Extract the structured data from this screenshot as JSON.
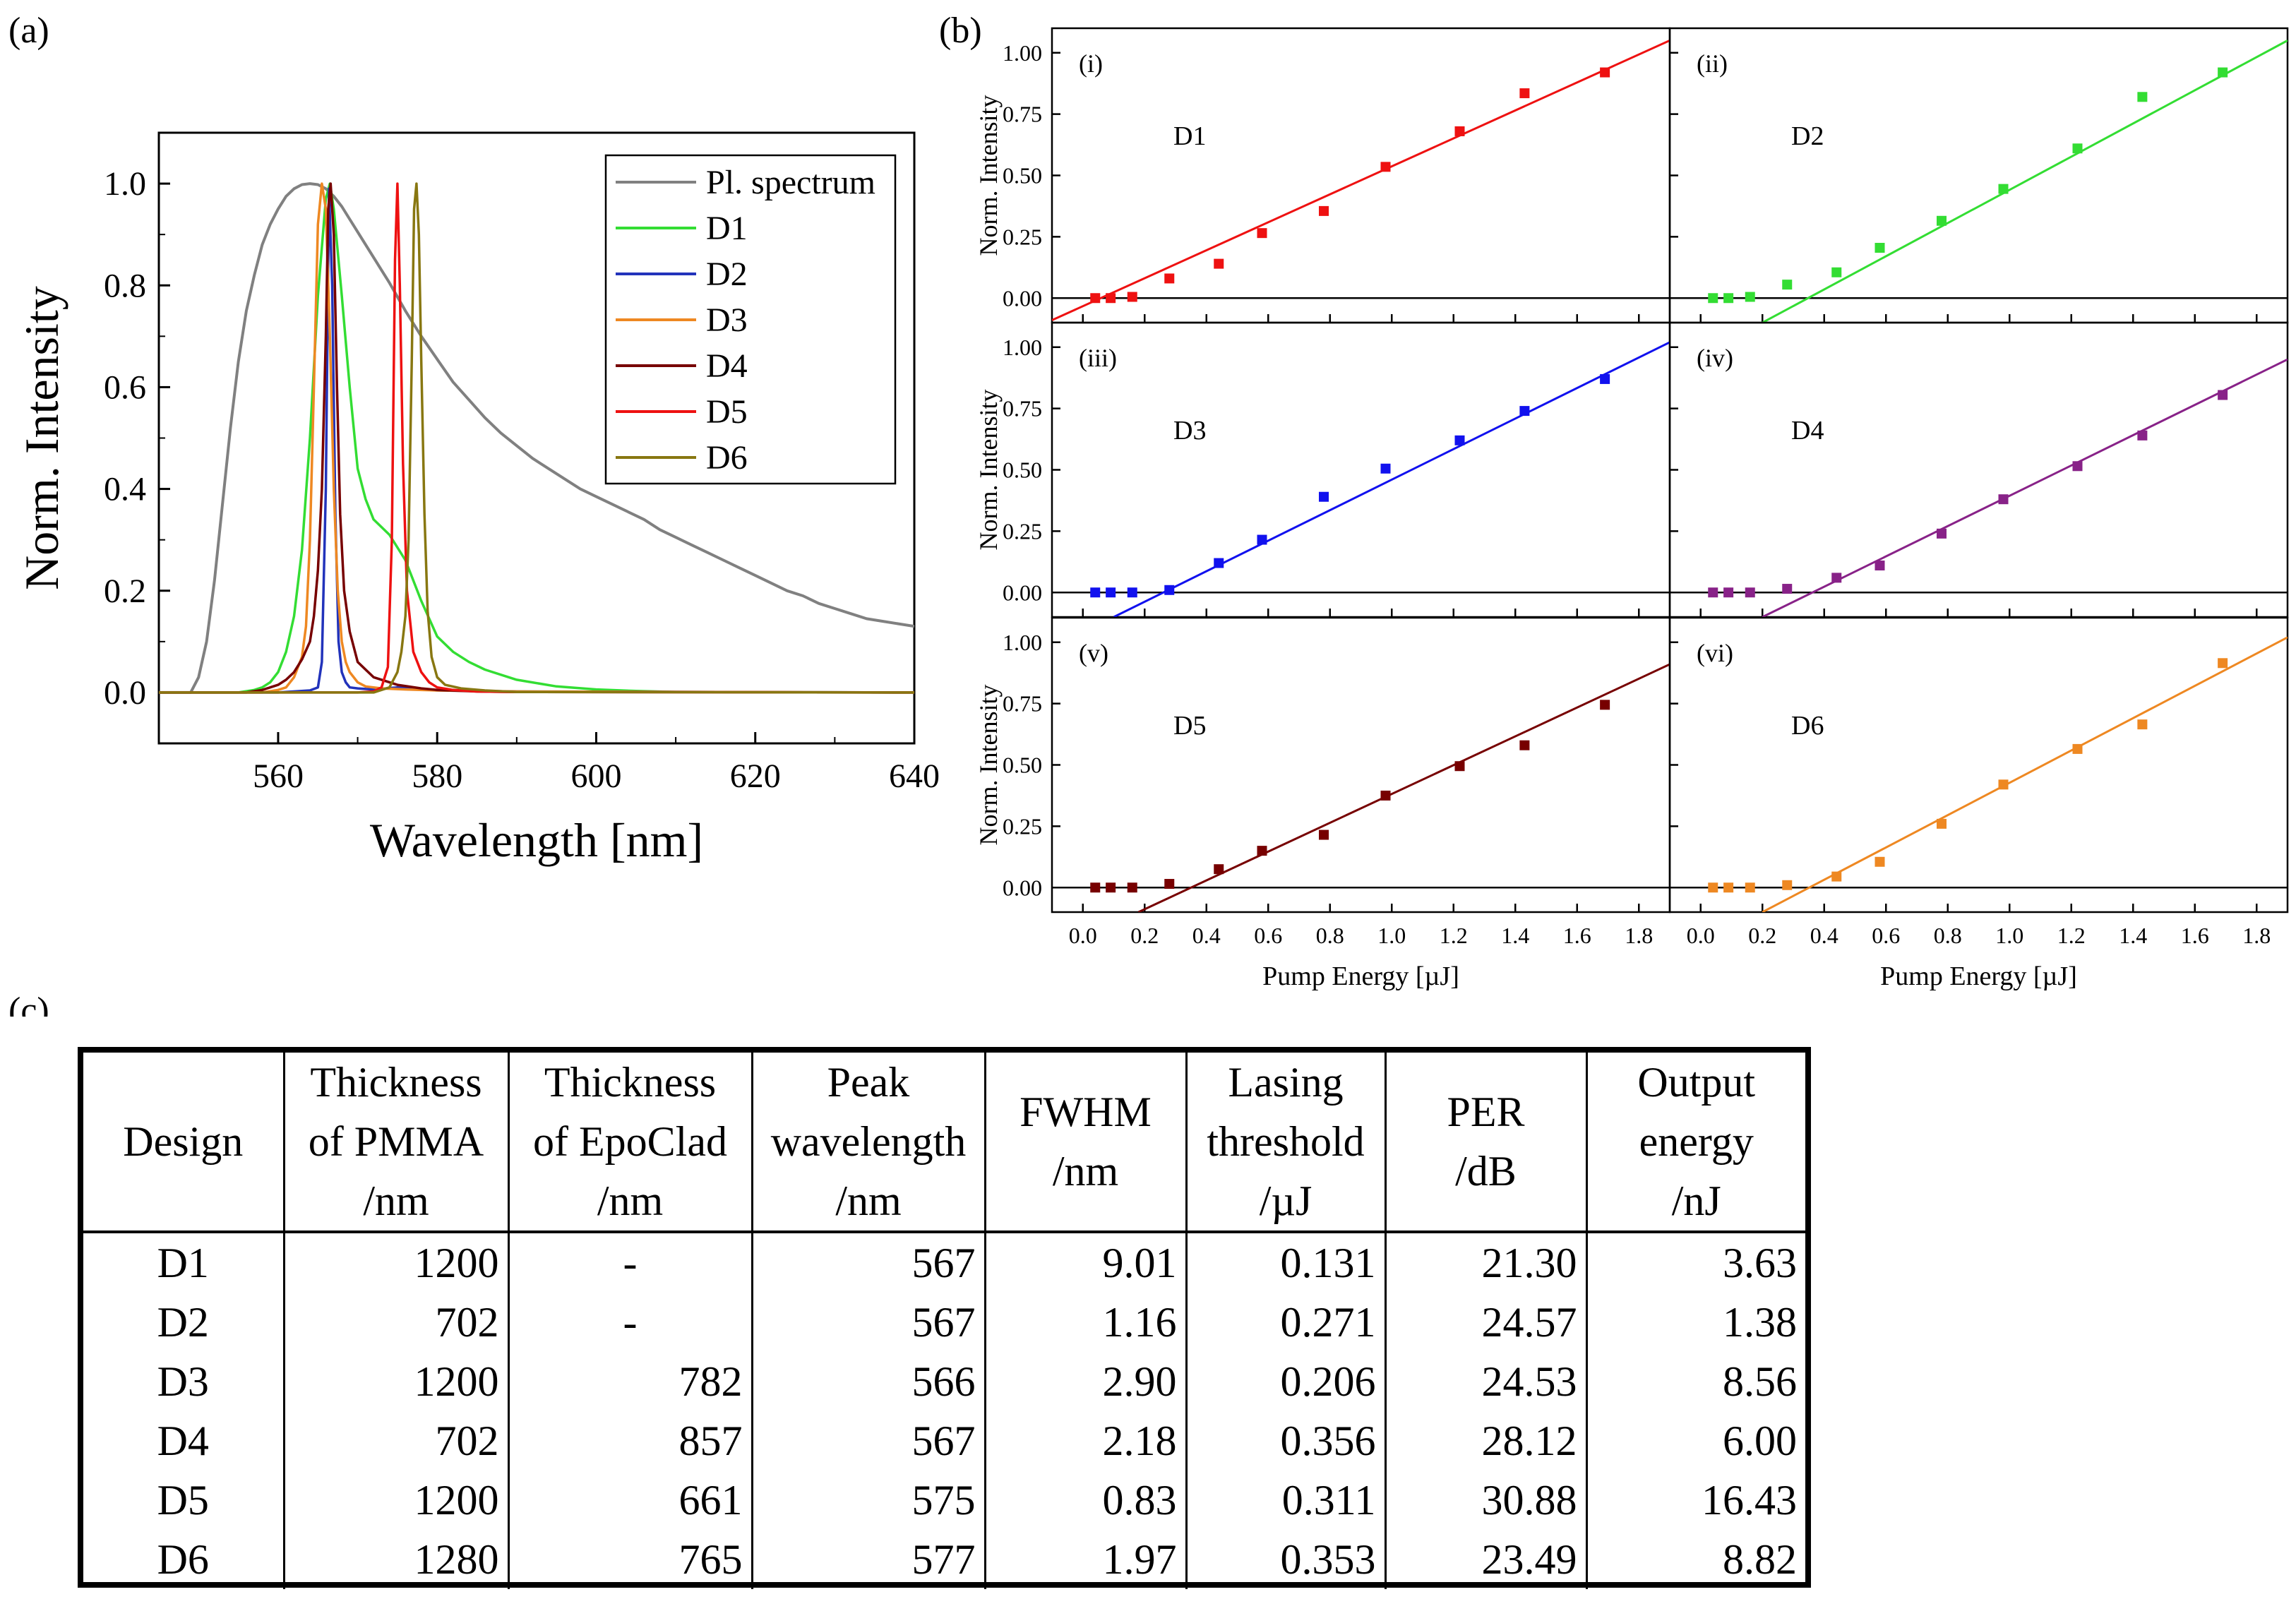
{
  "labels": {
    "a": "(a)",
    "b": "(b)",
    "c": "(c)"
  },
  "chart_data": [
    {
      "type": "line",
      "id": "a",
      "xlabel": "Wavelength [nm]",
      "ylabel": "Norm. Intensity",
      "xlim": [
        545,
        640
      ],
      "ylim": [
        -0.1,
        1.1
      ],
      "xticks": [
        "560",
        "580",
        "600",
        "620",
        "640"
      ],
      "yticks": [
        "0.0",
        "0.2",
        "0.4",
        "0.6",
        "0.8",
        "1.0"
      ],
      "legend": "top-right",
      "series": [
        {
          "name": "Pl. spectrum",
          "color": "#808080",
          "x": [
            545,
            549,
            550,
            551,
            552,
            553,
            554,
            555,
            556,
            557,
            558,
            559,
            560,
            561,
            562,
            563,
            564,
            565,
            566,
            567,
            568,
            569,
            570,
            572,
            574,
            576,
            578,
            580,
            582,
            584,
            586,
            588,
            590,
            592,
            594,
            596,
            598,
            600,
            602,
            604,
            606,
            608,
            610,
            612,
            614,
            616,
            618,
            620,
            622,
            624,
            626,
            628,
            630,
            632,
            634,
            636,
            638,
            640
          ],
          "y": [
            0,
            0,
            0.03,
            0.1,
            0.22,
            0.37,
            0.52,
            0.65,
            0.75,
            0.82,
            0.88,
            0.92,
            0.95,
            0.975,
            0.99,
            0.998,
            1.0,
            0.998,
            0.99,
            0.975,
            0.955,
            0.93,
            0.905,
            0.855,
            0.805,
            0.75,
            0.7,
            0.655,
            0.61,
            0.575,
            0.54,
            0.51,
            0.485,
            0.46,
            0.44,
            0.42,
            0.4,
            0.385,
            0.37,
            0.355,
            0.34,
            0.32,
            0.305,
            0.29,
            0.275,
            0.26,
            0.245,
            0.23,
            0.215,
            0.2,
            0.19,
            0.175,
            0.165,
            0.155,
            0.145,
            0.14,
            0.135,
            0.13
          ]
        },
        {
          "name": "D1",
          "color": "#33dd33",
          "x": [
            545,
            555,
            557,
            558,
            559,
            560,
            561,
            562,
            563,
            564,
            565,
            566,
            566.5,
            567,
            568,
            569,
            570,
            571,
            572,
            574,
            576,
            578,
            580,
            582,
            584,
            586,
            590,
            595,
            600,
            605,
            610,
            640
          ],
          "y": [
            0,
            0,
            0.005,
            0.01,
            0.02,
            0.04,
            0.08,
            0.15,
            0.28,
            0.5,
            0.78,
            0.97,
            1.0,
            0.95,
            0.78,
            0.6,
            0.44,
            0.38,
            0.34,
            0.31,
            0.26,
            0.18,
            0.11,
            0.08,
            0.06,
            0.045,
            0.025,
            0.012,
            0.006,
            0.003,
            0.001,
            0
          ]
        },
        {
          "name": "D2",
          "color": "#2233bb",
          "x": [
            545,
            560,
            564,
            565,
            565.5,
            566,
            566.4,
            566.8,
            567.2,
            567.6,
            568,
            568.5,
            569,
            570,
            572,
            575,
            580,
            590,
            640
          ],
          "y": [
            0,
            0,
            0.004,
            0.01,
            0.06,
            0.4,
            0.99,
            0.8,
            0.35,
            0.1,
            0.04,
            0.02,
            0.01,
            0.008,
            0.006,
            0.01,
            0.004,
            0.002,
            0
          ]
        },
        {
          "name": "D3",
          "color": "#ee8822",
          "x": [
            545,
            558,
            560,
            561,
            562,
            563,
            563.5,
            564,
            564.5,
            565,
            565.5,
            566,
            566.5,
            567,
            567.5,
            568,
            568.5,
            569,
            570,
            571,
            573,
            576,
            580,
            590,
            640
          ],
          "y": [
            0,
            0,
            0.005,
            0.01,
            0.03,
            0.07,
            0.13,
            0.3,
            0.6,
            0.92,
            1.0,
            0.95,
            0.7,
            0.4,
            0.2,
            0.1,
            0.06,
            0.04,
            0.02,
            0.012,
            0.008,
            0.006,
            0.004,
            0.002,
            0
          ]
        },
        {
          "name": "D4",
          "color": "#770000",
          "x": [
            545,
            556,
            558,
            560,
            561,
            562,
            563,
            564,
            564.5,
            565,
            565.5,
            566,
            566.3,
            566.6,
            567,
            567.4,
            567.8,
            568.3,
            569,
            570,
            572,
            575,
            578,
            580,
            585,
            590,
            640
          ],
          "y": [
            0,
            0,
            0.005,
            0.015,
            0.025,
            0.04,
            0.065,
            0.1,
            0.15,
            0.24,
            0.4,
            0.7,
            0.95,
            1.0,
            0.9,
            0.6,
            0.35,
            0.2,
            0.12,
            0.06,
            0.03,
            0.015,
            0.008,
            0.005,
            0.002,
            0.001,
            0
          ]
        },
        {
          "name": "D5",
          "color": "#ee1111",
          "x": [
            545,
            570,
            572,
            573,
            573.8,
            574.3,
            574.7,
            575,
            575.3,
            575.7,
            576.2,
            577,
            578,
            579,
            580,
            582,
            585,
            590,
            640
          ],
          "y": [
            0,
            0,
            0.002,
            0.01,
            0.05,
            0.3,
            0.85,
            1.0,
            0.8,
            0.45,
            0.2,
            0.08,
            0.04,
            0.02,
            0.01,
            0.005,
            0.002,
            0.001,
            0
          ]
        },
        {
          "name": "D6",
          "color": "#887711",
          "x": [
            545,
            572,
            574,
            575,
            575.5,
            576,
            576.4,
            576.8,
            577.1,
            577.4,
            577.7,
            578,
            578.4,
            578.8,
            579.3,
            580,
            581,
            583,
            586,
            590,
            640
          ],
          "y": [
            0,
            0,
            0.01,
            0.04,
            0.08,
            0.15,
            0.3,
            0.65,
            0.95,
            1.0,
            0.9,
            0.65,
            0.35,
            0.16,
            0.07,
            0.03,
            0.015,
            0.008,
            0.004,
            0.001,
            0
          ]
        }
      ]
    },
    {
      "type": "scatter",
      "id": "b",
      "xlabel": "Pump Energy [µJ]",
      "ylabel": "Norm. Intensity",
      "xlim": [
        -0.1,
        1.9
      ],
      "ylim": [
        -0.1,
        1.1
      ],
      "xticks": [
        "0.0",
        "0.2",
        "0.4",
        "0.6",
        "0.8",
        "1.0",
        "1.2",
        "1.4",
        "1.6",
        "1.8"
      ],
      "yticks": [
        "0.00",
        "0.25",
        "0.50",
        "0.75",
        "1.00"
      ],
      "x": [
        0.04,
        0.09,
        0.16,
        0.28,
        0.44,
        0.58,
        0.78,
        0.98,
        1.22,
        1.43,
        1.69
      ],
      "panels": [
        {
          "tag": "(i)",
          "name": "D1",
          "color": "#ee1111",
          "y": [
            0,
            0,
            0.005,
            0.08,
            0.14,
            0.265,
            0.355,
            0.535,
            0.68,
            0.835,
            0.92
          ],
          "fit": {
            "x0": -0.1,
            "y0": -0.09,
            "x1": 1.9,
            "y1": 1.05
          }
        },
        {
          "tag": "(ii)",
          "name": "D2",
          "color": "#33dd33",
          "y": [
            0,
            0,
            0.005,
            0.055,
            0.105,
            0.205,
            0.315,
            0.445,
            0.61,
            0.82,
            0.92
          ],
          "fit": {
            "x0": 0.2,
            "y0": -0.1,
            "x1": 1.9,
            "y1": 1.05
          }
        },
        {
          "tag": "(iii)",
          "name": "D3",
          "color": "#1111ee",
          "y": [
            0,
            0,
            0,
            0.01,
            0.12,
            0.215,
            0.39,
            0.505,
            0.62,
            0.74,
            0.87
          ],
          "fit": {
            "x0": 0.1,
            "y0": -0.1,
            "x1": 1.9,
            "y1": 1.02
          }
        },
        {
          "tag": "(iv)",
          "name": "D4",
          "color": "#882288",
          "y": [
            0,
            0,
            0,
            0.015,
            0.06,
            0.11,
            0.24,
            0.38,
            0.515,
            0.64,
            0.805
          ],
          "fit": {
            "x0": 0.2,
            "y0": -0.1,
            "x1": 1.9,
            "y1": 0.95
          }
        },
        {
          "tag": "(v)",
          "name": "D5",
          "color": "#770000",
          "y": [
            0,
            0,
            0,
            0.015,
            0.075,
            0.15,
            0.215,
            0.375,
            0.495,
            0.58,
            0.745
          ],
          "fit": {
            "x0": 0.18,
            "y0": -0.1,
            "x1": 1.9,
            "y1": 0.91
          }
        },
        {
          "tag": "(vi)",
          "name": "D6",
          "color": "#ee8822",
          "y": [
            0,
            0,
            0,
            0.01,
            0.045,
            0.105,
            0.26,
            0.42,
            0.565,
            0.665,
            0.915
          ],
          "fit": {
            "x0": 0.2,
            "y0": -0.1,
            "x1": 1.9,
            "y1": 1.02
          }
        }
      ]
    },
    {
      "type": "table",
      "id": "c",
      "columns": [
        [
          "Design"
        ],
        [
          "Thickness",
          "of PMMA",
          "/nm"
        ],
        [
          "Thickness",
          "of EpoClad",
          "/nm"
        ],
        [
          "Peak",
          "wavelength",
          "/nm"
        ],
        [
          "FWHM",
          "/nm"
        ],
        [
          "Lasing",
          "threshold",
          "/µJ"
        ],
        [
          "PER",
          "/dB"
        ],
        [
          "Output",
          "energy",
          "/nJ"
        ]
      ],
      "rows": [
        [
          "D1",
          "1200",
          "-",
          "567",
          "9.01",
          "0.131",
          "21.30",
          "3.63"
        ],
        [
          "D2",
          "702",
          "-",
          "567",
          "1.16",
          "0.271",
          "24.57",
          "1.38"
        ],
        [
          "D3",
          "1200",
          "782",
          "566",
          "2.90",
          "0.206",
          "24.53",
          "8.56"
        ],
        [
          "D4",
          "702",
          "857",
          "567",
          "2.18",
          "0.356",
          "28.12",
          "6.00"
        ],
        [
          "D5",
          "1200",
          "661",
          "575",
          "0.83",
          "0.311",
          "30.88",
          "16.43"
        ],
        [
          "D6",
          "1280",
          "765",
          "577",
          "1.97",
          "0.353",
          "23.49",
          "8.82"
        ]
      ]
    }
  ]
}
